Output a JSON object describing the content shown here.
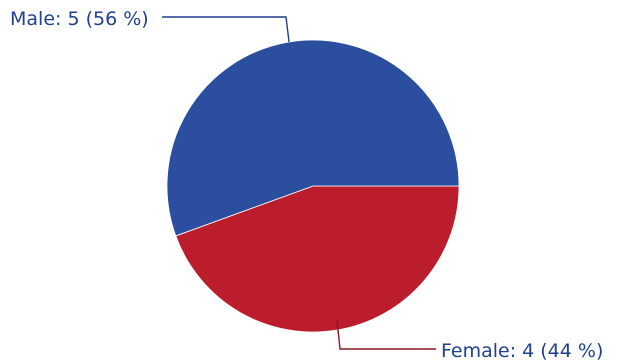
{
  "chart_data": {
    "type": "pie",
    "slices": [
      {
        "label": "Male",
        "value": 5,
        "percent": 56,
        "text": "Male: 5 (56 %)",
        "color": "#2b4f9e"
      },
      {
        "label": "Female",
        "value": 4,
        "percent": 44,
        "text": "Female: 4 (44 %)",
        "color": "#bb1d2c"
      }
    ]
  }
}
